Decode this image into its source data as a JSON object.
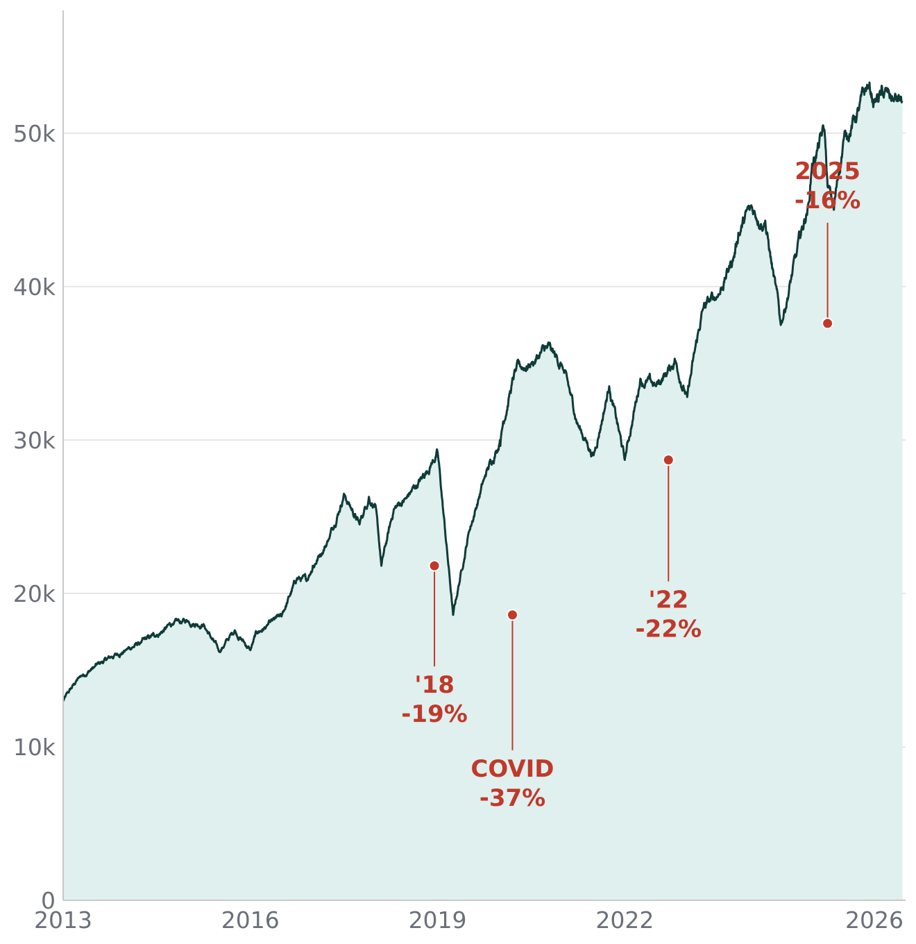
{
  "chart_data": {
    "type": "area",
    "title": "",
    "xlabel": "",
    "ylabel": "",
    "xlim": [
      2013,
      2026.5
    ],
    "ylim": [
      0,
      58000
    ],
    "y_ticks": [
      0,
      10000,
      20000,
      30000,
      40000,
      50000
    ],
    "y_tick_labels": [
      "0",
      "10k",
      "20k",
      "30k",
      "40k",
      "50k"
    ],
    "x_ticks": [
      2013,
      2016,
      2019,
      2022,
      2026
    ],
    "x_tick_labels": [
      "2013",
      "2016",
      "2019",
      "2022",
      "2026"
    ],
    "grid": "horizontal",
    "colors": {
      "line": "#0e3b38",
      "fill": "#e0f0ee",
      "annotation": "#c0392b"
    },
    "series": [
      {
        "x": [
          2013.0,
          2013.25,
          2013.5,
          2013.75,
          2014.0,
          2014.25,
          2014.5,
          2014.75,
          2015.0,
          2015.25,
          2015.5,
          2015.75,
          2016.0,
          2016.1,
          2016.25,
          2016.5,
          2016.75,
          2016.9,
          2017.0,
          2017.25,
          2017.5,
          2017.75,
          2017.9,
          2018.0,
          2018.1,
          2018.3,
          2018.5,
          2018.75,
          2018.9,
          2019.0,
          2019.25,
          2019.5,
          2019.75,
          2020.0,
          2020.05,
          2020.15,
          2020.25,
          2020.5,
          2020.75,
          2021.0,
          2021.25,
          2021.5,
          2021.75,
          2022.0,
          2022.25,
          2022.5,
          2022.75,
          2022.8,
          2023.0,
          2023.25,
          2023.5,
          2023.75,
          2023.82,
          2024.0,
          2024.25,
          2024.5,
          2024.75,
          2024.95,
          2025.0,
          2025.2,
          2025.25,
          2025.35,
          2025.5,
          2025.75,
          2025.9,
          2026.0,
          2026.1,
          2026.3,
          2026.45
        ],
        "y": [
          13000,
          14500,
          15200,
          15800,
          16300,
          16800,
          17300,
          18000,
          18200,
          18000,
          16200,
          17600,
          16300,
          17400,
          17800,
          18500,
          21000,
          20800,
          21800,
          23500,
          26500,
          24500,
          26300,
          25800,
          21800,
          25500,
          26200,
          27500,
          28500,
          29200,
          18600,
          24000,
          27500,
          30000,
          31200,
          33000,
          34500,
          35000,
          36000,
          34800,
          31000,
          29000,
          33500,
          28700,
          34000,
          33500,
          34800,
          35300,
          32800,
          38500,
          39500,
          42000,
          43500,
          45000,
          44300,
          37500,
          42000,
          45500,
          48000,
          50200,
          46500,
          45000,
          49500,
          51500,
          53000,
          52000,
          52500,
          52200,
          52000
        ]
      }
    ],
    "annotations": [
      {
        "x": 2018.95,
        "y": 21800,
        "line": [
          "'18",
          "-19%"
        ]
      },
      {
        "x": 2020.2,
        "y": 18600,
        "line": [
          "COVID",
          "-37%"
        ]
      },
      {
        "x": 2022.7,
        "y": 28700,
        "line": [
          "'22",
          "-22%"
        ]
      },
      {
        "x": 2025.25,
        "y": 37600,
        "line": [
          "2025",
          "-16%"
        ]
      }
    ]
  }
}
